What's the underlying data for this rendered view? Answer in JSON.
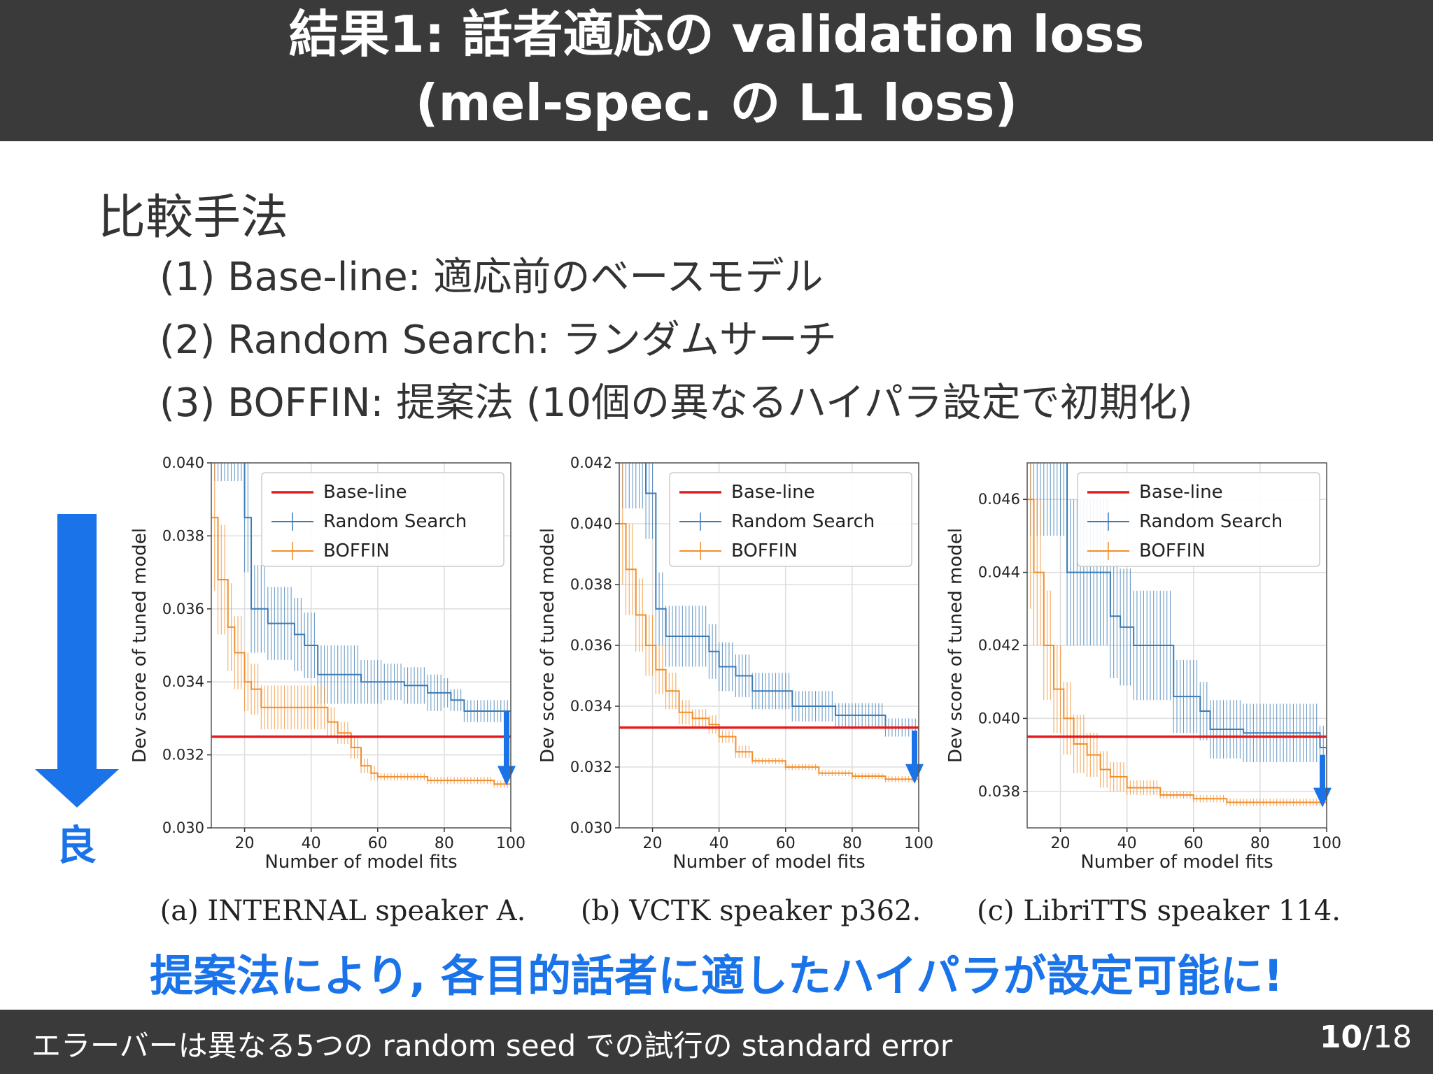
{
  "header": {
    "title_line1": "結果1: 話者適応の validation loss",
    "title_line2": "(mel-spec. の L1 loss)"
  },
  "section_title": "比較手法",
  "methods": [
    "(1) Base-line: 適応前のベースモデル",
    "(2) Random Search: ランダムサーチ",
    "(3) BOFFIN: 提案法 (10個の異なるハイパラ設定で初期化)"
  ],
  "good_label": "良",
  "conclusion": "提案法により, 各目的話者に適したハイパラが設定可能に!",
  "footer": {
    "note": "エラーバーは異なる5つの random seed での試行の standard error",
    "page_current": "10",
    "page_separator": "/",
    "page_total": "18"
  },
  "colors": {
    "baseline": "#e41a1c",
    "random": "#3b7bb5",
    "boffin": "#f28e2b",
    "accent": "#1a73e8",
    "header_bg": "#3a3a3a"
  },
  "chart_data": [
    {
      "type": "line",
      "caption": "(a) INTERNAL speaker A.",
      "xlabel": "Number of model fits",
      "ylabel": "Dev score of tuned model",
      "xlim": [
        10,
        100
      ],
      "ylim": [
        0.03,
        0.04
      ],
      "xticks": [
        20,
        40,
        60,
        80,
        100
      ],
      "yticks": [
        "0.030",
        "0.032",
        "0.034",
        "0.036",
        "0.038",
        "0.040"
      ],
      "grid": true,
      "legend": {
        "position": "top-right",
        "entries": [
          "Base-line",
          "Random Search",
          "BOFFIN"
        ]
      },
      "baseline": 0.0325,
      "random_search": {
        "x": [
          10,
          20,
          22,
          27,
          35,
          38,
          42,
          55,
          62,
          68,
          75,
          80,
          82,
          86,
          100
        ],
        "y": [
          0.0415,
          0.0385,
          0.036,
          0.0356,
          0.0353,
          0.035,
          0.0342,
          0.034,
          0.034,
          0.0339,
          0.0337,
          0.0337,
          0.0335,
          0.0332,
          0.0332
        ],
        "err": [
          0.002,
          0.0015,
          0.0012,
          0.001,
          0.001,
          0.0009,
          0.0008,
          0.0006,
          0.0005,
          0.0005,
          0.0005,
          0.0004,
          0.0003,
          0.0003,
          0.0003
        ]
      },
      "boffin": {
        "x": [
          10,
          12,
          15,
          17,
          20,
          22,
          25,
          28,
          40,
          45,
          48,
          52,
          55,
          58,
          60,
          70,
          75,
          85,
          95,
          100
        ],
        "y": [
          0.0385,
          0.0368,
          0.0355,
          0.0348,
          0.034,
          0.0338,
          0.0333,
          0.0333,
          0.0333,
          0.0329,
          0.0326,
          0.0322,
          0.0317,
          0.0315,
          0.0314,
          0.0314,
          0.0313,
          0.0313,
          0.0312,
          0.0312
        ],
        "err": [
          0.002,
          0.0015,
          0.0012,
          0.001,
          0.0008,
          0.0007,
          0.0006,
          0.0006,
          0.0006,
          0.0004,
          0.0003,
          0.0003,
          0.0002,
          0.0002,
          0.0001,
          0.0001,
          0.0001,
          0.0001,
          0.0001,
          0.0001
        ]
      }
    },
    {
      "type": "line",
      "caption": "(b) VCTK speaker p362.",
      "xlabel": "Number of model fits",
      "ylabel": "Dev score of tuned model",
      "xlim": [
        10,
        100
      ],
      "ylim": [
        0.03,
        0.042
      ],
      "xticks": [
        20,
        40,
        60,
        80,
        100
      ],
      "yticks": [
        "0.030",
        "0.032",
        "0.034",
        "0.036",
        "0.038",
        "0.040",
        "0.042"
      ],
      "grid": true,
      "legend": {
        "position": "top-right",
        "entries": [
          "Base-line",
          "Random Search",
          "BOFFIN"
        ]
      },
      "baseline": 0.0333,
      "random_search": {
        "x": [
          10,
          18,
          21,
          24,
          37,
          40,
          45,
          50,
          62,
          75,
          88,
          90,
          100
        ],
        "y": [
          0.0425,
          0.041,
          0.0372,
          0.0363,
          0.0358,
          0.0353,
          0.035,
          0.0345,
          0.034,
          0.0337,
          0.0337,
          0.0333,
          0.0332
        ],
        "err": [
          0.002,
          0.0015,
          0.0012,
          0.001,
          0.0009,
          0.0008,
          0.0007,
          0.0006,
          0.0005,
          0.0004,
          0.0004,
          0.0003,
          0.0003
        ]
      },
      "boffin": {
        "x": [
          10,
          12,
          15,
          18,
          21,
          24,
          28,
          32,
          37,
          40,
          45,
          50,
          60,
          70,
          80,
          90,
          100
        ],
        "y": [
          0.04,
          0.0385,
          0.037,
          0.036,
          0.0352,
          0.0345,
          0.0338,
          0.0336,
          0.0334,
          0.033,
          0.0325,
          0.0322,
          0.032,
          0.0318,
          0.0317,
          0.0316,
          0.0315
        ],
        "err": [
          0.002,
          0.0015,
          0.0012,
          0.001,
          0.0008,
          0.0006,
          0.0004,
          0.0003,
          0.0003,
          0.0002,
          0.0002,
          0.0001,
          0.0001,
          0.0001,
          0.0001,
          0.0001,
          0.0001
        ]
      }
    },
    {
      "type": "line",
      "caption": "(c) LibriTTS speaker 114.",
      "xlabel": "Number of model fits",
      "ylabel": "Dev score of tuned model",
      "xlim": [
        10,
        100
      ],
      "ylim": [
        0.037,
        0.047
      ],
      "xticks": [
        20,
        40,
        60,
        80,
        100
      ],
      "yticks": [
        "0.038",
        "0.040",
        "0.042",
        "0.044",
        "0.046"
      ],
      "grid": true,
      "legend": {
        "position": "top-right",
        "entries": [
          "Base-line",
          "Random Search",
          "BOFFIN"
        ]
      },
      "baseline": 0.0395,
      "random_search": {
        "x": [
          10,
          20,
          22,
          35,
          38,
          42,
          50,
          54,
          62,
          65,
          75,
          98,
          100
        ],
        "y": [
          0.048,
          0.048,
          0.044,
          0.0428,
          0.0425,
          0.042,
          0.042,
          0.0406,
          0.0402,
          0.0397,
          0.0396,
          0.0392,
          0.039
        ],
        "err": [
          0.003,
          0.003,
          0.002,
          0.0017,
          0.0016,
          0.0015,
          0.0015,
          0.001,
          0.0008,
          0.0008,
          0.0008,
          0.0006,
          0.0005
        ]
      },
      "boffin": {
        "x": [
          10,
          12,
          15,
          18,
          21,
          24,
          28,
          32,
          35,
          40,
          50,
          60,
          70,
          80,
          90,
          100
        ],
        "y": [
          0.046,
          0.044,
          0.042,
          0.0408,
          0.04,
          0.0393,
          0.039,
          0.0386,
          0.0384,
          0.0381,
          0.0379,
          0.0378,
          0.0377,
          0.0377,
          0.0377,
          0.0376
        ],
        "err": [
          0.003,
          0.002,
          0.0015,
          0.0012,
          0.001,
          0.0008,
          0.0006,
          0.0005,
          0.0004,
          0.0002,
          0.0001,
          0.0001,
          0.0001,
          0.0001,
          0.0001,
          0.0001
        ]
      }
    }
  ]
}
